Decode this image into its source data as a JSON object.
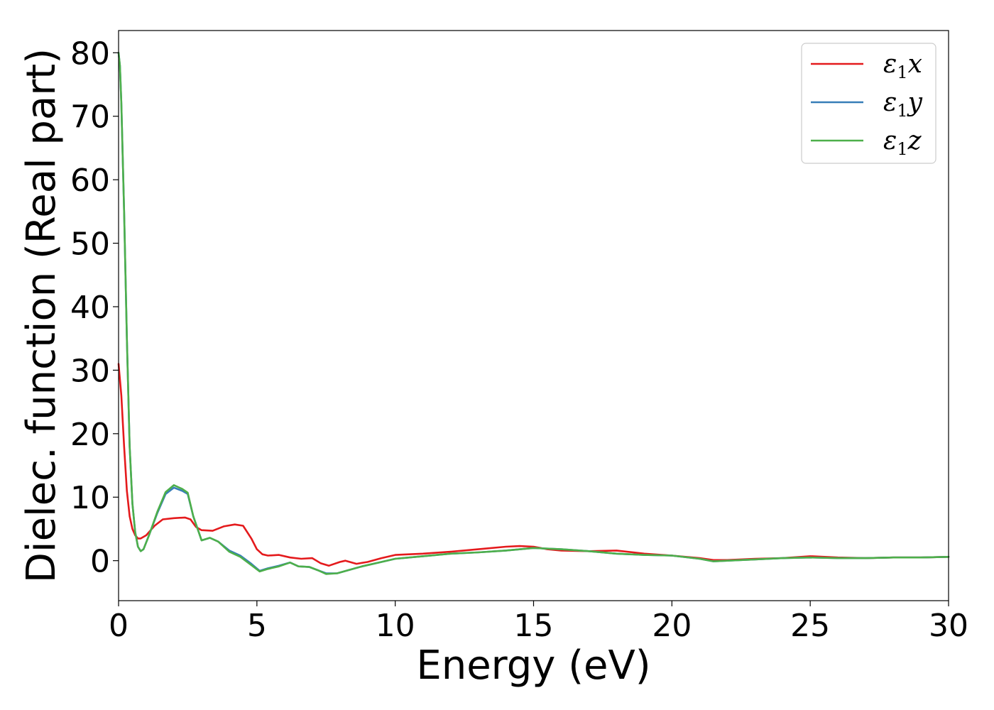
{
  "chart_data": {
    "type": "line",
    "title": "",
    "xlabel": "Energy (eV)",
    "ylabel": "Dielec. function (Real part)",
    "xlim": [
      0,
      30
    ],
    "ylim": [
      -6.3,
      83.5
    ],
    "xticks": [
      0,
      5,
      10,
      15,
      20,
      25,
      30
    ],
    "yticks": [
      0,
      10,
      20,
      30,
      40,
      50,
      60,
      70,
      80
    ],
    "grid": false,
    "legend_position": "top-right",
    "series": [
      {
        "name": "ε1x",
        "legend_base": "ε",
        "legend_sub": "1",
        "legend_suffix": "x",
        "color": "#e41a1c",
        "x": [
          0,
          0.1,
          0.2,
          0.3,
          0.4,
          0.5,
          0.6,
          0.7,
          0.8,
          1.0,
          1.3,
          1.6,
          2.0,
          2.4,
          2.6,
          2.8,
          3.0,
          3.4,
          3.8,
          4.2,
          4.5,
          4.8,
          5.0,
          5.2,
          5.4,
          5.8,
          6.2,
          6.6,
          7.0,
          7.3,
          7.6,
          8.0,
          8.2,
          8.6,
          9.0,
          9.5,
          10.0,
          11.0,
          12.0,
          13.0,
          14.0,
          14.5,
          15.0,
          15.5,
          16.0,
          17.0,
          18.0,
          19.0,
          20.0,
          21.0,
          21.5,
          22.0,
          23.0,
          24.0,
          25.0,
          26.0,
          27.0,
          28.0,
          29.0,
          30.0
        ],
        "y": [
          31,
          26,
          18,
          11,
          7,
          5,
          4,
          3.5,
          3.5,
          4,
          5.5,
          6.5,
          6.7,
          6.8,
          6.5,
          5.3,
          4.8,
          4.7,
          5.4,
          5.7,
          5.5,
          3.5,
          1.8,
          1.0,
          0.8,
          0.9,
          0.5,
          0.3,
          0.4,
          -0.4,
          -0.8,
          -0.2,
          0.0,
          -0.5,
          -0.2,
          0.4,
          0.9,
          1.1,
          1.4,
          1.8,
          2.2,
          2.3,
          2.2,
          1.8,
          1.6,
          1.5,
          1.6,
          1.1,
          0.8,
          0.4,
          0.1,
          0.1,
          0.3,
          0.4,
          0.7,
          0.5,
          0.4,
          0.5,
          0.5,
          0.6
        ]
      },
      {
        "name": "ε1y",
        "legend_base": "ε",
        "legend_sub": "1",
        "legend_suffix": "y",
        "color": "#377eb8",
        "x": [
          0,
          0.05,
          0.1,
          0.2,
          0.3,
          0.4,
          0.5,
          0.6,
          0.7,
          0.8,
          0.9,
          1.1,
          1.4,
          1.7,
          2.0,
          2.3,
          2.5,
          2.7,
          3.0,
          3.3,
          3.6,
          4.0,
          4.4,
          4.8,
          5.1,
          5.4,
          5.8,
          6.2,
          6.5,
          6.9,
          7.2,
          7.5,
          7.9,
          8.3,
          8.8,
          9.5,
          10.0,
          11.0,
          12.0,
          13.0,
          14.0,
          15.0,
          16.0,
          17.0,
          18.0,
          19.0,
          20.0,
          21.0,
          21.5,
          22.0,
          23.0,
          24.0,
          25.0,
          26.0,
          27.0,
          28.0,
          29.0,
          30.0
        ],
        "y": [
          80,
          78,
          72,
          55,
          35,
          18,
          9,
          4.5,
          2.2,
          1.5,
          1.8,
          4,
          7.5,
          10.5,
          11.5,
          11.0,
          10.5,
          7.0,
          3.2,
          3.6,
          3.0,
          1.6,
          0.8,
          -0.5,
          -1.6,
          -1.2,
          -0.8,
          -0.3,
          -0.9,
          -1.0,
          -1.5,
          -2.0,
          -2.0,
          -1.5,
          -0.9,
          -0.2,
          0.3,
          0.7,
          1.1,
          1.3,
          1.6,
          2.0,
          1.8,
          1.5,
          1.1,
          0.9,
          0.8,
          0.3,
          -0.1,
          0.0,
          0.2,
          0.4,
          0.5,
          0.4,
          0.4,
          0.5,
          0.5,
          0.6
        ]
      },
      {
        "name": "ε1z",
        "legend_base": "ε",
        "legend_sub": "1",
        "legend_suffix": "z",
        "color": "#4daf4a",
        "x": [
          0,
          0.05,
          0.1,
          0.2,
          0.3,
          0.4,
          0.5,
          0.6,
          0.7,
          0.8,
          0.9,
          1.1,
          1.4,
          1.7,
          2.0,
          2.3,
          2.5,
          2.7,
          3.0,
          3.3,
          3.6,
          4.0,
          4.4,
          4.8,
          5.1,
          5.4,
          5.8,
          6.2,
          6.5,
          6.9,
          7.2,
          7.5,
          7.9,
          8.3,
          8.8,
          9.5,
          10.0,
          11.0,
          12.0,
          13.0,
          14.0,
          15.0,
          16.0,
          17.0,
          18.0,
          19.0,
          20.0,
          21.0,
          21.5,
          22.0,
          23.0,
          24.0,
          25.0,
          26.0,
          27.0,
          28.0,
          29.0,
          30.0
        ],
        "y": [
          80,
          78,
          72,
          55,
          35,
          18,
          9,
          4.5,
          2.2,
          1.5,
          1.8,
          4,
          7.7,
          10.8,
          11.9,
          11.3,
          10.7,
          7.0,
          3.2,
          3.6,
          3.0,
          1.4,
          0.6,
          -0.7,
          -1.7,
          -1.3,
          -0.9,
          -0.3,
          -0.9,
          -1.0,
          -1.5,
          -2.1,
          -2.0,
          -1.5,
          -0.9,
          -0.2,
          0.3,
          0.7,
          1.1,
          1.3,
          1.6,
          2.0,
          1.8,
          1.5,
          1.1,
          0.9,
          0.8,
          0.3,
          -0.1,
          0.0,
          0.2,
          0.4,
          0.5,
          0.4,
          0.4,
          0.5,
          0.5,
          0.6
        ]
      }
    ]
  }
}
